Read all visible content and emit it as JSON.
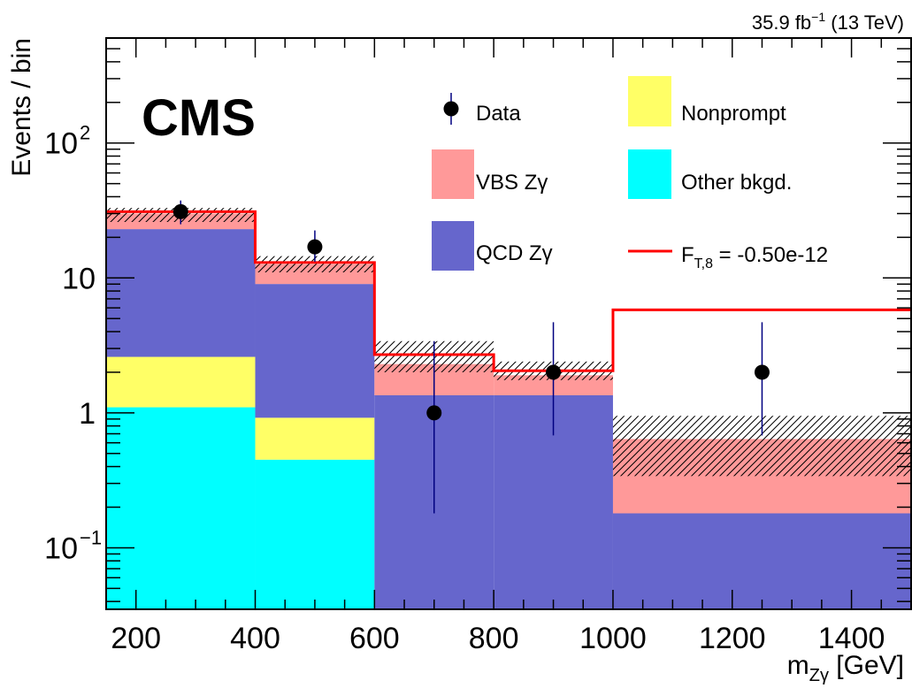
{
  "chart_data": {
    "type": "bar",
    "experiment": "CMS",
    "lumi_label": "35.9 fb",
    "lumi_exp": "−1",
    "energy_label": " (13 TeV)",
    "xlabel_main": "m",
    "xlabel_sub": "Zγ",
    "xlabel_unit": " [GeV]",
    "ylabel": "Events / bin",
    "xlim": [
      150,
      1500
    ],
    "ylim": [
      0.035,
      600
    ],
    "yscale": "log",
    "x_ticks": [
      200,
      400,
      600,
      800,
      1000,
      1200,
      1400
    ],
    "y_tick_labels": [
      {
        "value": 0.1,
        "base": "10",
        "exp": "−1"
      },
      {
        "value": 1,
        "base": "1",
        "exp": ""
      },
      {
        "value": 10,
        "base": "10",
        "exp": ""
      },
      {
        "value": 100,
        "base": "10",
        "exp": "2"
      }
    ],
    "bin_edges": [
      150,
      400,
      600,
      800,
      1000,
      1500
    ],
    "stack": [
      {
        "name": "Other bkgd.",
        "color": "#00ffff",
        "values": [
          1.1,
          0.45,
          0,
          0,
          0
        ]
      },
      {
        "name": "Nonprompt",
        "color": "#ffff66",
        "values": [
          1.5,
          0.47,
          0,
          0,
          0
        ]
      },
      {
        "name": "QCD Zγ",
        "color": "#6666cc",
        "values": [
          20.4,
          8.1,
          1.35,
          1.35,
          0.18
        ]
      },
      {
        "name": "VBS Zγ",
        "color": "#ff9999",
        "values": [
          7.0,
          3.6,
          0.95,
          0.55,
          0.46
        ]
      }
    ],
    "uncertainty": {
      "low": [
        26,
        11,
        2.0,
        1.75,
        0.34
      ],
      "high": [
        33,
        14.5,
        3.4,
        2.4,
        0.95
      ]
    },
    "signal": {
      "name_main": "F",
      "name_sub": "T,8",
      "name_rest": " = -0.50e-12",
      "color": "#ff0000",
      "values": [
        31,
        13,
        2.7,
        2.05,
        5.8
      ]
    },
    "data_points": {
      "name": "Data",
      "x": [
        275,
        500,
        700,
        900,
        1250
      ],
      "y": [
        31,
        17,
        1,
        2,
        2
      ],
      "yerr_low": [
        25,
        13.2,
        0.18,
        0.68,
        0.68
      ],
      "yerr_high": [
        37.5,
        22.5,
        3.4,
        4.7,
        4.7
      ]
    },
    "legend": {
      "placement": "top-right",
      "entries": [
        "Data",
        "Nonprompt",
        "VBS Zγ",
        "Other bkgd.",
        "QCD Zγ",
        "signal"
      ]
    }
  }
}
